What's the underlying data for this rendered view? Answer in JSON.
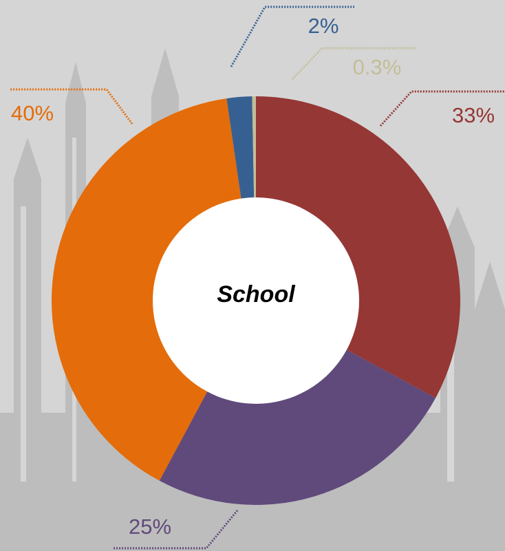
{
  "chart_data": {
    "type": "donut",
    "center_label": "School",
    "values": [
      33,
      25,
      40,
      2,
      0.3
    ],
    "colors": [
      "#953735",
      "#604a7b",
      "#e46c0a",
      "#376092",
      "#c4bd97"
    ]
  }
}
